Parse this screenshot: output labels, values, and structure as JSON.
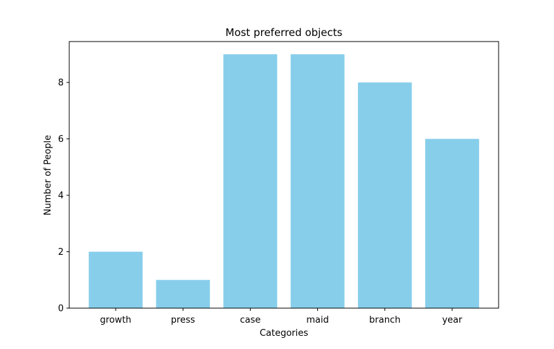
{
  "chart_data": {
    "type": "bar",
    "title": "Most preferred objects",
    "xlabel": "Categories",
    "ylabel": "Number of People",
    "categories": [
      "growth",
      "press",
      "case",
      "maid",
      "branch",
      "year"
    ],
    "values": [
      2,
      1,
      9,
      9,
      8,
      6
    ],
    "ylim": [
      0,
      9.45
    ],
    "yticks": [
      0,
      2,
      4,
      6,
      8
    ],
    "bar_color": "#87CEEB",
    "grid": false,
    "legend": "none"
  }
}
